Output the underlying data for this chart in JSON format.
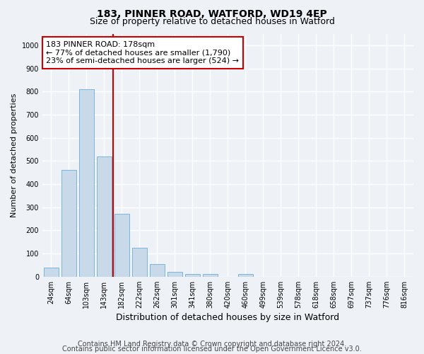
{
  "title1": "183, PINNER ROAD, WATFORD, WD19 4EP",
  "title2": "Size of property relative to detached houses in Watford",
  "xlabel": "Distribution of detached houses by size in Watford",
  "ylabel": "Number of detached properties",
  "categories": [
    "24sqm",
    "64sqm",
    "103sqm",
    "143sqm",
    "182sqm",
    "222sqm",
    "262sqm",
    "301sqm",
    "341sqm",
    "380sqm",
    "420sqm",
    "460sqm",
    "499sqm",
    "539sqm",
    "578sqm",
    "618sqm",
    "658sqm",
    "697sqm",
    "737sqm",
    "776sqm",
    "816sqm"
  ],
  "values": [
    40,
    460,
    810,
    520,
    270,
    125,
    55,
    20,
    10,
    10,
    0,
    10,
    0,
    0,
    0,
    0,
    0,
    0,
    0,
    0,
    0
  ],
  "bar_color": "#c8d9ea",
  "bar_edge_color": "#6aaed6",
  "vline_index": 3.5,
  "vline_color": "#cc0000",
  "annotation_text": "183 PINNER ROAD: 178sqm\n← 77% of detached houses are smaller (1,790)\n23% of semi-detached houses are larger (524) →",
  "annotation_box_color": "#ffffff",
  "annotation_box_edge": "#cc0000",
  "ylim": [
    0,
    1050
  ],
  "yticks": [
    0,
    100,
    200,
    300,
    400,
    500,
    600,
    700,
    800,
    900,
    1000
  ],
  "footer1": "Contains HM Land Registry data © Crown copyright and database right 2024.",
  "footer2": "Contains public sector information licensed under the Open Government Licence v3.0.",
  "bg_color": "#eef2f7",
  "grid_color": "#ffffff",
  "title_fontsize": 10,
  "subtitle_fontsize": 9,
  "ylabel_fontsize": 8,
  "xlabel_fontsize": 9,
  "tick_fontsize": 7,
  "footer_fontsize": 7,
  "ann_fontsize": 8
}
